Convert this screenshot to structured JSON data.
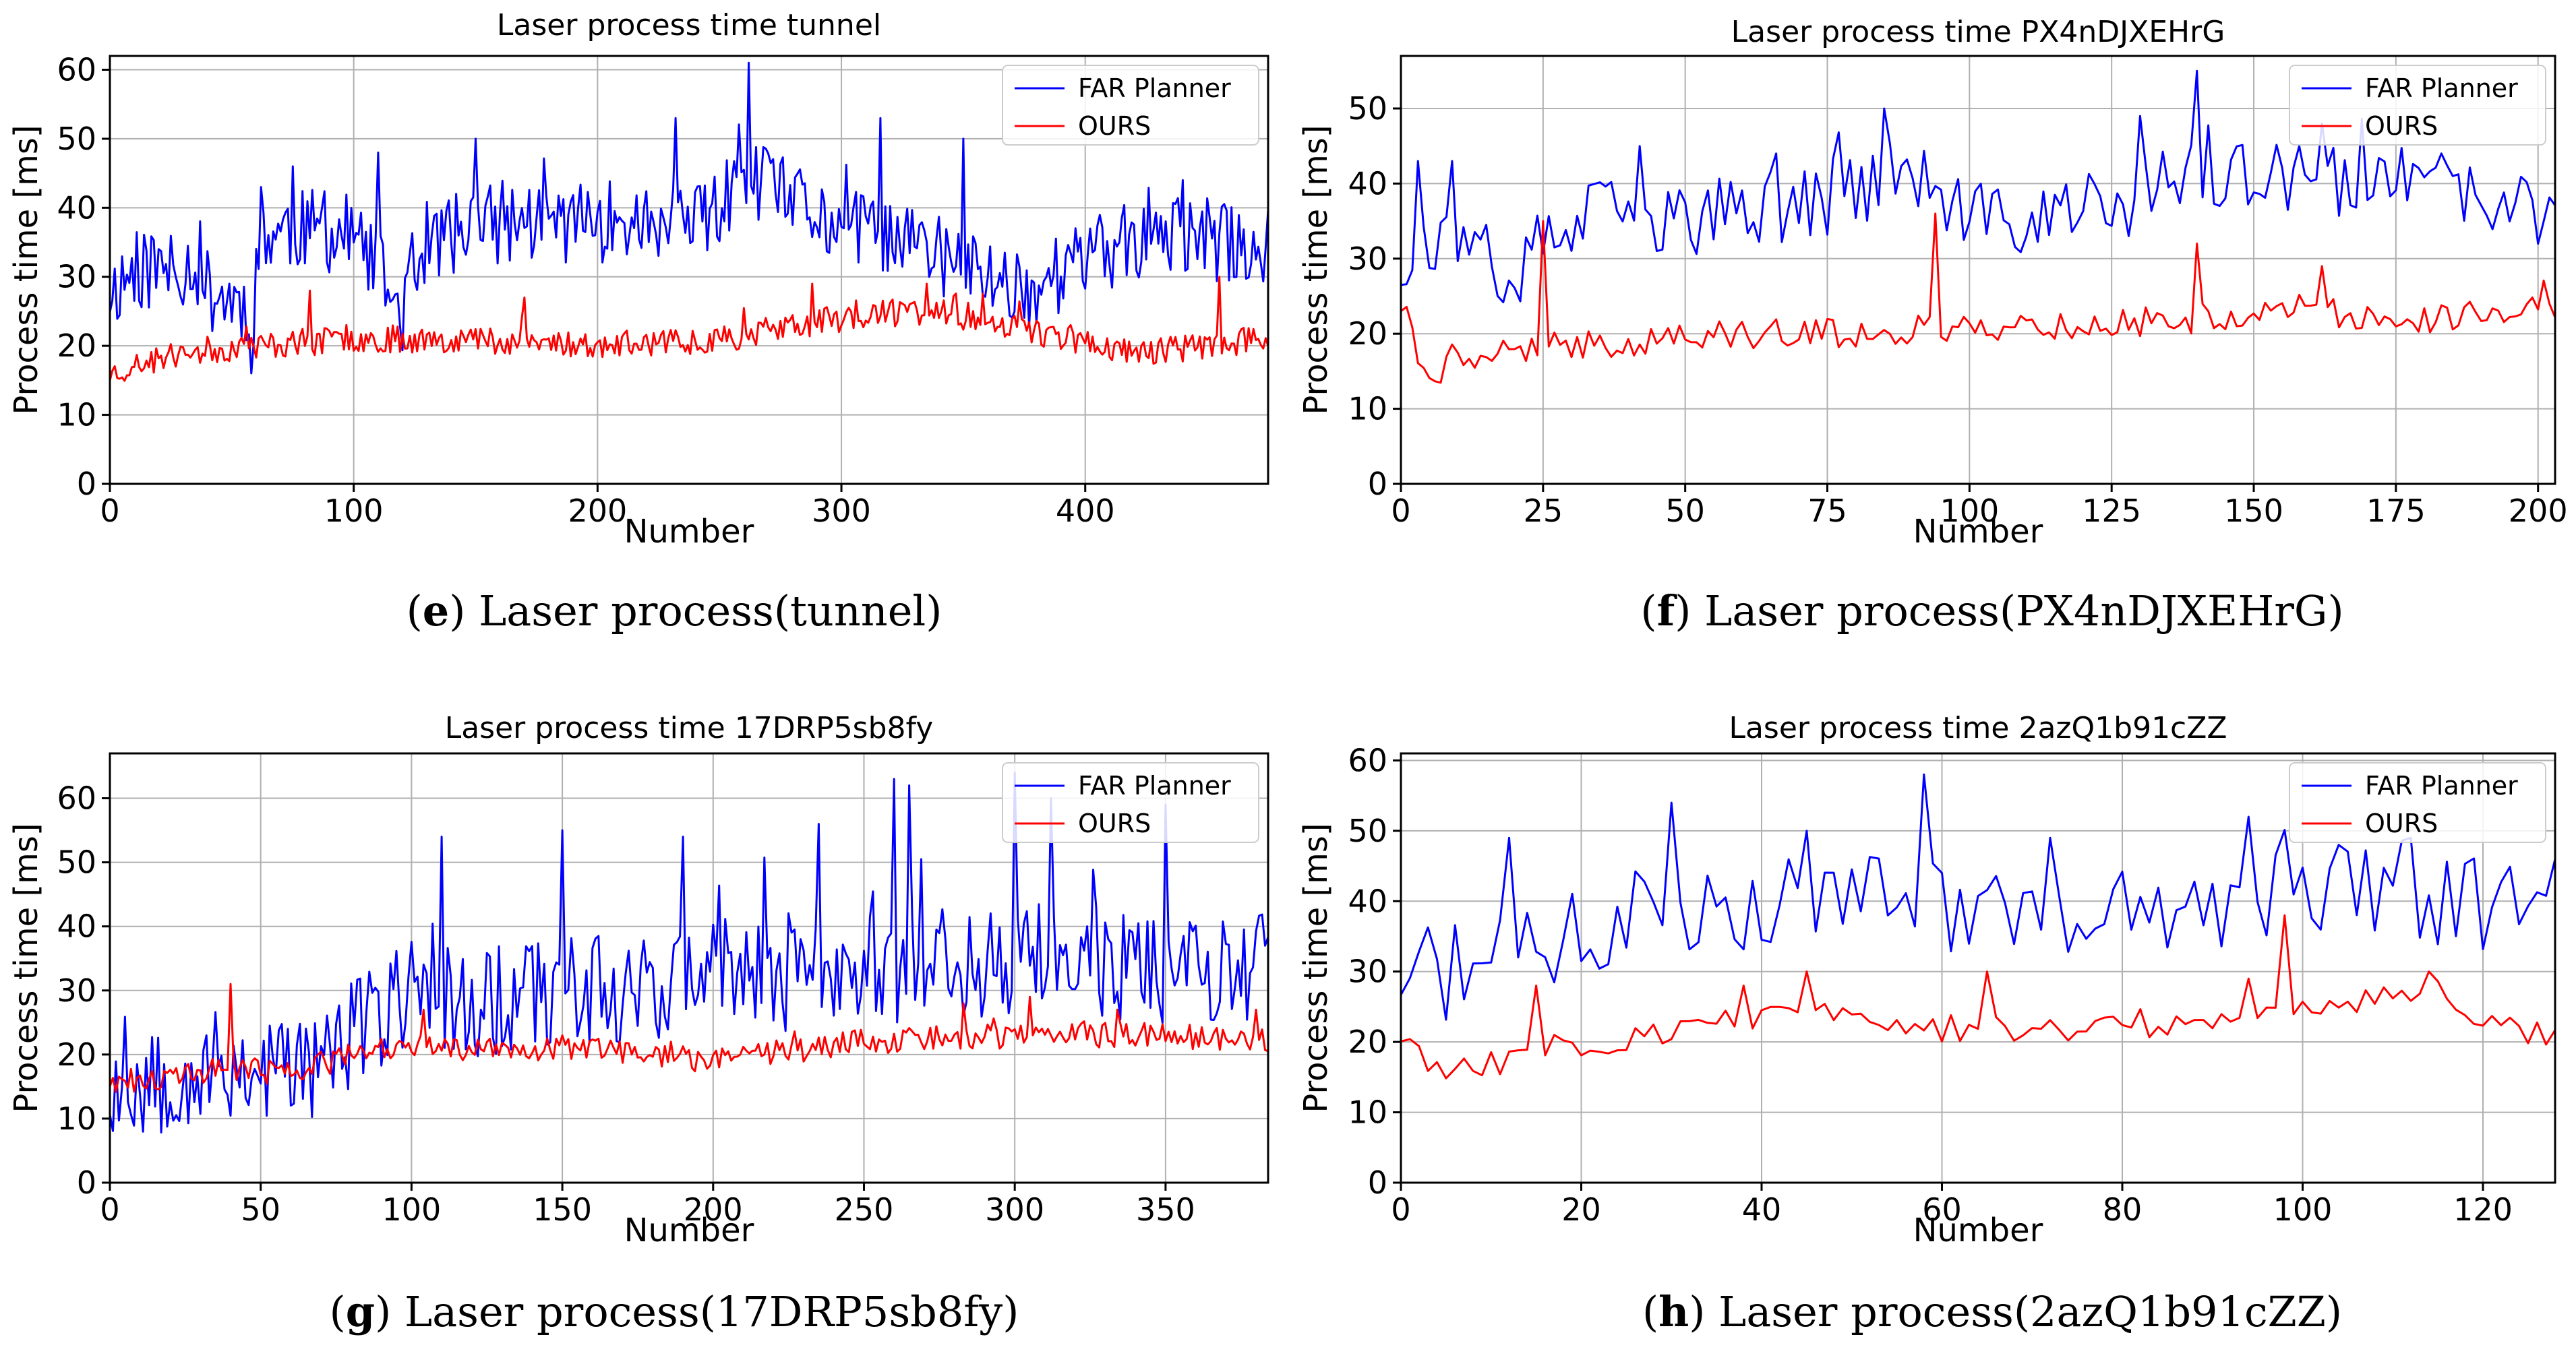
{
  "chart_data": [
    {
      "type": "line",
      "title": "Laser process time tunnel",
      "xlabel": "Number",
      "ylabel": "Process time [ms]",
      "xlim": [
        0,
        475
      ],
      "ylim": [
        0,
        62
      ],
      "xticks": [
        0,
        100,
        200,
        300,
        400
      ],
      "yticks": [
        0,
        10,
        20,
        30,
        40,
        50,
        60
      ],
      "grid": true,
      "legend_loc": "upper right",
      "caption": {
        "letter": "e",
        "text": "Laser process(tunnel)"
      },
      "series": [
        {
          "name": "FAR Planner",
          "color": "#0000ff",
          "n": 476,
          "seed": 11,
          "points": [
            [
              0,
              28
            ],
            [
              10,
              31
            ],
            [
              25,
              31
            ],
            [
              35,
              32
            ],
            [
              40,
              28
            ],
            [
              55,
              26
            ],
            [
              58,
              22
            ],
            [
              62,
              36
            ],
            [
              75,
              37
            ],
            [
              100,
              36
            ],
            [
              120,
              25
            ],
            [
              130,
              35
            ],
            [
              160,
              38
            ],
            [
              200,
              38
            ],
            [
              240,
              37
            ],
            [
              262,
              44
            ],
            [
              300,
              37
            ],
            [
              320,
              36
            ],
            [
              340,
              33
            ],
            [
              360,
              30
            ],
            [
              380,
              28
            ],
            [
              390,
              31
            ],
            [
              420,
              35
            ],
            [
              440,
              36
            ],
            [
              475,
              34
            ]
          ],
          "noise": 6,
          "spikes": [
            [
              62,
              43
            ],
            [
              75,
              46
            ],
            [
              110,
              48
            ],
            [
              150,
              50
            ],
            [
              232,
              53
            ],
            [
              262,
              61
            ],
            [
              316,
              53
            ],
            [
              350,
              50
            ],
            [
              440,
              44
            ]
          ]
        },
        {
          "name": "OURS",
          "color": "#ff0000",
          "n": 476,
          "seed": 23,
          "points": [
            [
              0,
              16
            ],
            [
              30,
              19
            ],
            [
              60,
              20
            ],
            [
              100,
              21
            ],
            [
              150,
              21
            ],
            [
              200,
              20
            ],
            [
              250,
              21
            ],
            [
              300,
              24
            ],
            [
              330,
              25
            ],
            [
              360,
              24
            ],
            [
              380,
              22
            ],
            [
              420,
              19
            ],
            [
              475,
              21
            ]
          ],
          "noise": 2,
          "spikes": [
            [
              82,
              28
            ],
            [
              170,
              27
            ],
            [
              288,
              29
            ],
            [
              335,
              29
            ],
            [
              455,
              30
            ]
          ]
        }
      ]
    },
    {
      "type": "line",
      "title": "Laser process time PX4nDJXEHrG",
      "xlabel": "Number",
      "ylabel": "Process time [ms]",
      "xlim": [
        0,
        203
      ],
      "ylim": [
        0,
        57
      ],
      "xticks": [
        0,
        25,
        50,
        75,
        100,
        125,
        150,
        175,
        200
      ],
      "yticks": [
        0,
        10,
        20,
        30,
        40,
        50
      ],
      "grid": true,
      "legend_loc": "upper right",
      "caption": {
        "letter": "f",
        "text": "Laser process(PX4nDJXEHrG)"
      },
      "series": [
        {
          "name": "FAR Planner",
          "color": "#0000ff",
          "n": 204,
          "seed": 37,
          "points": [
            [
              0,
              29
            ],
            [
              5,
              33
            ],
            [
              10,
              31
            ],
            [
              15,
              27
            ],
            [
              20,
              27
            ],
            [
              25,
              32
            ],
            [
              35,
              36
            ],
            [
              50,
              35
            ],
            [
              75,
              38
            ],
            [
              90,
              42
            ],
            [
              95,
              37
            ],
            [
              100,
              34
            ],
            [
              125,
              37
            ],
            [
              140,
              41
            ],
            [
              160,
              40
            ],
            [
              180,
              40
            ],
            [
              195,
              36
            ],
            [
              203,
              37
            ]
          ],
          "noise": 5,
          "spikes": [
            [
              3,
              43
            ],
            [
              9,
              43
            ],
            [
              42,
              45
            ],
            [
              66,
              44
            ],
            [
              85,
              50
            ],
            [
              130,
              49
            ],
            [
              140,
              55
            ],
            [
              162,
              48
            ],
            [
              183,
              44
            ]
          ]
        },
        {
          "name": "OURS",
          "color": "#ff0000",
          "n": 204,
          "seed": 41,
          "points": [
            [
              0,
              24
            ],
            [
              4,
              16
            ],
            [
              6,
              13
            ],
            [
              10,
              17
            ],
            [
              24,
              18
            ],
            [
              40,
              19
            ],
            [
              60,
              20
            ],
            [
              80,
              20
            ],
            [
              100,
              21
            ],
            [
              120,
              21
            ],
            [
              140,
              22
            ],
            [
              160,
              23
            ],
            [
              180,
              22
            ],
            [
              203,
              24
            ]
          ],
          "noise": 2,
          "spikes": [
            [
              25,
              35
            ],
            [
              94,
              36
            ],
            [
              140,
              32
            ],
            [
              162,
              29
            ]
          ]
        }
      ]
    },
    {
      "type": "line",
      "title": "Laser process time 17DRP5sb8fy",
      "xlabel": "Number",
      "ylabel": "Process time [ms]",
      "xlim": [
        0,
        384
      ],
      "ylim": [
        0,
        67
      ],
      "xticks": [
        0,
        50,
        100,
        150,
        200,
        250,
        300,
        350
      ],
      "yticks": [
        0,
        10,
        20,
        30,
        40,
        50,
        60
      ],
      "grid": true,
      "legend_loc": "upper right",
      "caption": {
        "letter": "g",
        "text": "Laser process(17DRP5sb8fy)"
      },
      "series": [
        {
          "name": "FAR Planner",
          "color": "#0000ff",
          "n": 385,
          "seed": 53,
          "points": [
            [
              0,
              15
            ],
            [
              20,
              17
            ],
            [
              40,
              18
            ],
            [
              60,
              18
            ],
            [
              75,
              20
            ],
            [
              85,
              25
            ],
            [
              100,
              30
            ],
            [
              120,
              28
            ],
            [
              150,
              30
            ],
            [
              200,
              32
            ],
            [
              250,
              33
            ],
            [
              300,
              35
            ],
            [
              340,
              34
            ],
            [
              384,
              33
            ]
          ],
          "noise": 9,
          "spikes": [
            [
              110,
              54
            ],
            [
              150,
              55
            ],
            [
              190,
              54
            ],
            [
              235,
              56
            ],
            [
              260,
              63
            ],
            [
              265,
              62
            ],
            [
              300,
              64
            ],
            [
              312,
              60
            ],
            [
              350,
              59
            ]
          ]
        },
        {
          "name": "OURS",
          "color": "#ff0000",
          "n": 385,
          "seed": 61,
          "points": [
            [
              0,
              16
            ],
            [
              20,
              16
            ],
            [
              40,
              18
            ],
            [
              60,
              17
            ],
            [
              80,
              20
            ],
            [
              100,
              21
            ],
            [
              150,
              21
            ],
            [
              200,
              19
            ],
            [
              250,
              22
            ],
            [
              300,
              23
            ],
            [
              350,
              23
            ],
            [
              384,
              22
            ]
          ],
          "noise": 2,
          "spikes": [
            [
              40,
              31
            ],
            [
              104,
              27
            ],
            [
              283,
              28
            ],
            [
              305,
              29
            ],
            [
              334,
              27
            ],
            [
              380,
              27
            ]
          ]
        }
      ]
    },
    {
      "type": "line",
      "title": "Laser process time 2azQ1b91cZZ",
      "xlabel": "Number",
      "ylabel": "Process time [ms]",
      "xlim": [
        0,
        128
      ],
      "ylim": [
        0,
        61
      ],
      "xticks": [
        0,
        20,
        40,
        60,
        80,
        100,
        120
      ],
      "yticks": [
        0,
        10,
        20,
        30,
        40,
        50,
        60
      ],
      "grid": true,
      "legend_loc": "upper right",
      "caption": {
        "letter": "h",
        "text": "Laser process(2azQ1b91cZZ)"
      },
      "series": [
        {
          "name": "FAR Planner",
          "color": "#0000ff",
          "n": 129,
          "seed": 71,
          "points": [
            [
              0,
              30
            ],
            [
              10,
              30
            ],
            [
              20,
              35
            ],
            [
              30,
              40
            ],
            [
              40,
              40
            ],
            [
              50,
              41
            ],
            [
              60,
              40
            ],
            [
              70,
              38
            ],
            [
              80,
              38
            ],
            [
              90,
              40
            ],
            [
              100,
              42
            ],
            [
              110,
              43
            ],
            [
              120,
              38
            ],
            [
              128,
              40
            ]
          ],
          "noise": 7,
          "spikes": [
            [
              12,
              49
            ],
            [
              30,
              54
            ],
            [
              45,
              50
            ],
            [
              58,
              58
            ],
            [
              72,
              49
            ],
            [
              94,
              52
            ],
            [
              104,
              48
            ],
            [
              112,
              49
            ]
          ]
        },
        {
          "name": "OURS",
          "color": "#ff0000",
          "n": 129,
          "seed": 83,
          "points": [
            [
              0,
              21
            ],
            [
              5,
              15
            ],
            [
              10,
              17
            ],
            [
              20,
              20
            ],
            [
              30,
              21
            ],
            [
              40,
              24
            ],
            [
              50,
              24
            ],
            [
              60,
              22
            ],
            [
              70,
              22
            ],
            [
              80,
              22
            ],
            [
              90,
              23
            ],
            [
              100,
              25
            ],
            [
              110,
              27
            ],
            [
              115,
              28
            ],
            [
              120,
              23
            ],
            [
              128,
              21
            ]
          ],
          "noise": 2,
          "spikes": [
            [
              15,
              28
            ],
            [
              38,
              28
            ],
            [
              45,
              30
            ],
            [
              65,
              30
            ],
            [
              94,
              29
            ],
            [
              98,
              38
            ],
            [
              114,
              30
            ]
          ]
        }
      ]
    }
  ]
}
